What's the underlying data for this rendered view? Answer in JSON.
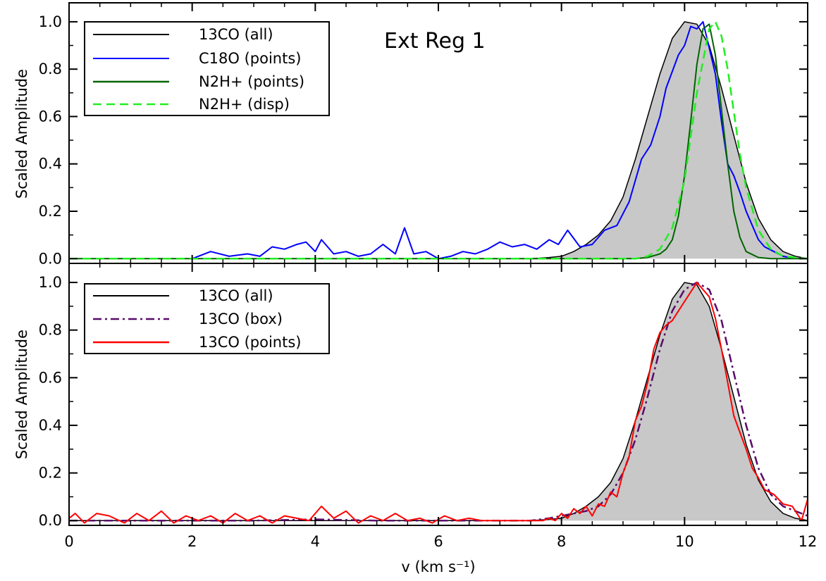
{
  "colors": {
    "c13_all": "#000000",
    "fill_13co": "#c8c8c8",
    "c18o_points": "#0000ff",
    "n2h_points": "#006400",
    "n2h_disp": "#22ee22",
    "c13_box": "#5a0a6a",
    "c13_points": "#ff0000"
  },
  "chart_data": [
    {
      "type": "line",
      "panel": "top",
      "annotation": "Ext Reg  1",
      "ylabel": "Scaled Amplitude",
      "xlabel": "",
      "xlim": [
        0,
        12
      ],
      "ylim": [
        -0.02,
        1.08
      ],
      "yticks": [
        "0.0",
        "0.2",
        "0.4",
        "0.6",
        "0.8",
        "1.0"
      ],
      "xticks": [
        "0",
        "2",
        "4",
        "6",
        "8",
        "10",
        "12"
      ],
      "legend_position": "top-left",
      "legend": [
        "13CO (all)",
        "C18O (points)",
        "N2H+ (points)",
        "N2H+ (disp)"
      ],
      "series": [
        {
          "name": "13CO (all)",
          "style": "solid-filled",
          "color_key": "c13_all",
          "x": [
            0,
            1,
            2,
            3,
            4,
            5,
            6,
            6.5,
            7,
            7.5,
            7.8,
            8.0,
            8.2,
            8.4,
            8.6,
            8.8,
            9.0,
            9.2,
            9.4,
            9.6,
            9.8,
            10.0,
            10.2,
            10.4,
            10.6,
            10.8,
            11.0,
            11.2,
            11.4,
            11.6,
            11.8,
            12.0
          ],
          "y": [
            0,
            0,
            0,
            0,
            0,
            0,
            0,
            0,
            0,
            0,
            0.005,
            0.01,
            0.03,
            0.06,
            0.1,
            0.16,
            0.26,
            0.42,
            0.6,
            0.78,
            0.93,
            1.0,
            0.99,
            0.9,
            0.72,
            0.52,
            0.32,
            0.17,
            0.08,
            0.03,
            0.01,
            0.0
          ]
        },
        {
          "name": "C18O (points)",
          "style": "solid",
          "color_key": "c18o_points",
          "x": [
            2.0,
            2.3,
            2.6,
            2.9,
            3.1,
            3.3,
            3.5,
            3.7,
            3.85,
            4.0,
            4.1,
            4.3,
            4.5,
            4.7,
            4.9,
            5.1,
            5.3,
            5.45,
            5.6,
            5.8,
            6.0,
            6.2,
            6.4,
            6.6,
            6.8,
            7.0,
            7.2,
            7.4,
            7.6,
            7.8,
            7.95,
            8.1,
            8.3,
            8.5,
            8.7,
            8.9,
            9.1,
            9.3,
            9.45,
            9.6,
            9.7,
            9.8,
            9.9,
            10.0,
            10.1,
            10.2,
            10.3,
            10.4,
            10.5,
            10.6,
            10.7,
            10.8,
            10.9,
            11.0,
            11.1,
            11.2,
            11.3,
            11.45,
            11.6,
            11.8
          ],
          "y": [
            0,
            0.03,
            0.01,
            0.02,
            0.01,
            0.05,
            0.04,
            0.06,
            0.07,
            0.03,
            0.08,
            0.02,
            0.03,
            0.01,
            0.02,
            0.06,
            0.02,
            0.13,
            0.02,
            0.03,
            0.0,
            0.01,
            0.03,
            0.02,
            0.04,
            0.07,
            0.05,
            0.06,
            0.04,
            0.08,
            0.06,
            0.12,
            0.05,
            0.06,
            0.12,
            0.14,
            0.24,
            0.42,
            0.48,
            0.6,
            0.72,
            0.79,
            0.86,
            0.9,
            0.98,
            0.97,
            1.0,
            0.89,
            0.78,
            0.58,
            0.4,
            0.35,
            0.28,
            0.2,
            0.14,
            0.08,
            0.05,
            0.03,
            0.01,
            0.0
          ]
        },
        {
          "name": "N2H+ (points)",
          "style": "solid",
          "color_key": "n2h_points",
          "x": [
            0,
            2,
            4,
            6,
            8,
            9.2,
            9.4,
            9.6,
            9.7,
            9.8,
            9.9,
            10.0,
            10.1,
            10.2,
            10.3,
            10.4,
            10.5,
            10.6,
            10.7,
            10.8,
            10.9,
            11.0,
            11.2,
            11.4,
            12
          ],
          "y": [
            0,
            0,
            0,
            0,
            0,
            0,
            0.005,
            0.02,
            0.04,
            0.08,
            0.18,
            0.35,
            0.58,
            0.82,
            0.97,
            0.99,
            0.86,
            0.63,
            0.4,
            0.2,
            0.09,
            0.03,
            0.005,
            0,
            0
          ]
        },
        {
          "name": "N2H+ (disp)",
          "style": "dashed",
          "color_key": "n2h_disp",
          "x": [
            0,
            2,
            4,
            6,
            8,
            9.2,
            9.4,
            9.6,
            9.8,
            10.0,
            10.2,
            10.4,
            10.5,
            10.6,
            10.7,
            10.8,
            10.9,
            11.0,
            11.2,
            11.4,
            11.6,
            12
          ],
          "y": [
            0,
            0,
            0,
            0,
            0,
            0,
            0.01,
            0.04,
            0.13,
            0.33,
            0.7,
            0.97,
            1.0,
            0.94,
            0.8,
            0.62,
            0.44,
            0.3,
            0.12,
            0.04,
            0.01,
            0
          ]
        }
      ]
    },
    {
      "type": "line",
      "panel": "bottom",
      "ylabel": "Scaled Amplitude",
      "xlabel": "v (km s⁻¹)",
      "xlim": [
        0,
        12
      ],
      "ylim": [
        -0.02,
        1.08
      ],
      "yticks": [
        "0.0",
        "0.2",
        "0.4",
        "0.6",
        "0.8",
        "1.0"
      ],
      "xticks": [
        "0",
        "2",
        "4",
        "6",
        "8",
        "10",
        "12"
      ],
      "legend_position": "top-left",
      "legend": [
        "13CO (all)",
        "13CO (box)",
        "13CO (points)"
      ],
      "series": [
        {
          "name": "13CO (all)",
          "style": "solid-filled",
          "color_key": "c13_all",
          "x": [
            0,
            1,
            2,
            3,
            4,
            5,
            6,
            6.5,
            7,
            7.5,
            7.8,
            8.0,
            8.2,
            8.4,
            8.6,
            8.8,
            9.0,
            9.2,
            9.4,
            9.6,
            9.8,
            10.0,
            10.2,
            10.4,
            10.6,
            10.8,
            11.0,
            11.2,
            11.4,
            11.6,
            11.8,
            12.0
          ],
          "y": [
            0,
            0,
            0,
            0,
            0,
            0,
            0,
            0,
            0,
            0,
            0.005,
            0.01,
            0.03,
            0.06,
            0.1,
            0.16,
            0.26,
            0.42,
            0.6,
            0.78,
            0.93,
            1.0,
            0.99,
            0.9,
            0.72,
            0.52,
            0.32,
            0.17,
            0.08,
            0.03,
            0.01,
            0.0
          ]
        },
        {
          "name": "13CO (box)",
          "style": "dashdot",
          "color_key": "c13_box",
          "x": [
            0,
            1,
            2,
            3,
            4,
            5,
            6,
            6.5,
            7,
            7.5,
            7.8,
            8.0,
            8.2,
            8.4,
            8.6,
            8.8,
            9.0,
            9.2,
            9.4,
            9.6,
            9.8,
            10.0,
            10.2,
            10.4,
            10.6,
            10.8,
            11.0,
            11.2,
            11.4,
            11.6,
            11.8,
            12.0
          ],
          "y": [
            0,
            0,
            0,
            0,
            0.005,
            0,
            0,
            0,
            0,
            0,
            0.01,
            0.02,
            0.03,
            0.04,
            0.06,
            0.11,
            0.2,
            0.34,
            0.52,
            0.72,
            0.88,
            0.97,
            1.0,
            0.97,
            0.84,
            0.62,
            0.4,
            0.22,
            0.11,
            0.06,
            0.04,
            0.02
          ]
        },
        {
          "name": "13CO (points)",
          "style": "solid",
          "color_key": "c13_points",
          "x": [
            0,
            0.1,
            0.25,
            0.45,
            0.65,
            0.9,
            1.1,
            1.3,
            1.5,
            1.7,
            1.9,
            2.1,
            2.3,
            2.5,
            2.7,
            2.9,
            3.1,
            3.3,
            3.5,
            3.7,
            3.9,
            4.1,
            4.3,
            4.5,
            4.7,
            4.9,
            5.1,
            5.3,
            5.5,
            5.7,
            5.9,
            6.1,
            6.3,
            6.5,
            6.7,
            6.9,
            7.1,
            7.3,
            7.5,
            7.7,
            7.8,
            7.9,
            8.0,
            8.1,
            8.2,
            8.3,
            8.4,
            8.5,
            8.6,
            8.7,
            8.8,
            8.9,
            9.0,
            9.1,
            9.2,
            9.3,
            9.4,
            9.5,
            9.6,
            9.7,
            9.8,
            9.9,
            10.0,
            10.1,
            10.2,
            10.3,
            10.4,
            10.5,
            10.6,
            10.7,
            10.8,
            10.9,
            11.0,
            11.1,
            11.2,
            11.3,
            11.45,
            11.6,
            11.75,
            11.9,
            12.0
          ],
          "y": [
            0.01,
            0.03,
            -0.01,
            0.03,
            0.02,
            -0.01,
            0.03,
            0.0,
            0.04,
            -0.01,
            0.02,
            0.0,
            0.02,
            -0.01,
            0.03,
            0.0,
            0.02,
            -0.01,
            0.02,
            0.01,
            0.0,
            0.06,
            0.01,
            0.04,
            -0.01,
            0.02,
            0.0,
            0.03,
            0.0,
            0.01,
            -0.01,
            0.02,
            0.0,
            0.01,
            0.0,
            0.0,
            0.0,
            0.0,
            0.0,
            0.0,
            0.01,
            0.0,
            0.03,
            0.01,
            0.05,
            0.03,
            0.06,
            0.02,
            0.07,
            0.06,
            0.12,
            0.1,
            0.2,
            0.27,
            0.42,
            0.48,
            0.58,
            0.72,
            0.79,
            0.82,
            0.84,
            0.88,
            0.92,
            0.96,
            1.0,
            0.97,
            0.94,
            0.85,
            0.72,
            0.58,
            0.44,
            0.37,
            0.3,
            0.22,
            0.18,
            0.13,
            0.11,
            0.07,
            0.06,
            0.0,
            0.09
          ]
        }
      ]
    }
  ]
}
